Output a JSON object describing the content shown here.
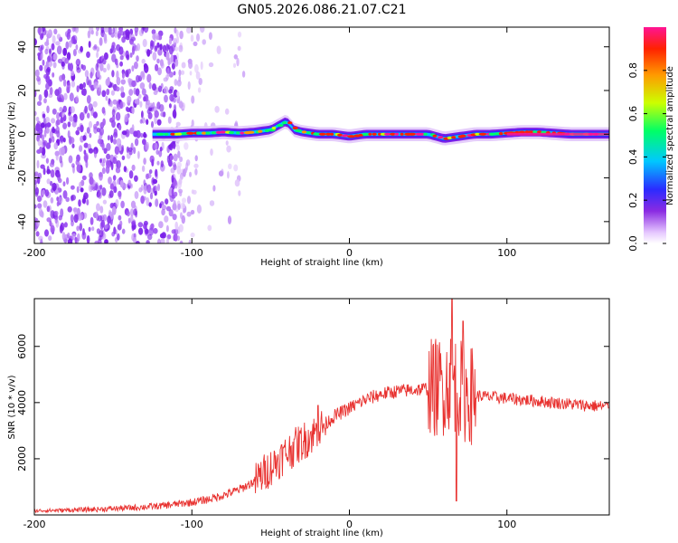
{
  "chart_data": [
    {
      "type": "heatmap",
      "title": "GN05.2026.086.21.07.C21",
      "xlabel": "Height of straight line (km)",
      "ylabel": "Frequency (Hz)",
      "xlim": [
        -200,
        165
      ],
      "ylim": [
        -50,
        49
      ],
      "xticks": [
        -200,
        -100,
        0,
        100
      ],
      "yticks": [
        -40,
        -20,
        0,
        20,
        40
      ],
      "grid": false,
      "colorbar": {
        "label": "Normalized spectral amplitude",
        "range": [
          0,
          1
        ],
        "ticks": [
          "0.0",
          "0.2",
          "0.4",
          "0.6",
          "0.8"
        ]
      },
      "noise_region_x": [
        -200,
        -65
      ],
      "ridge": {
        "x": [
          -125,
          -110,
          -100,
          -90,
          -80,
          -70,
          -60,
          -50,
          -45,
          -40,
          -35,
          -30,
          -20,
          -10,
          0,
          10,
          20,
          30,
          40,
          50,
          55,
          60,
          70,
          80,
          90,
          100,
          110,
          120,
          130,
          140,
          150,
          165
        ],
        "frequency": [
          0,
          0,
          0.5,
          0.5,
          1,
          0.5,
          1,
          2,
          4,
          6,
          2,
          1,
          0,
          0,
          -1,
          0,
          0,
          0,
          0,
          0,
          -1,
          -2,
          -1,
          0,
          0,
          0.5,
          1,
          1,
          0.5,
          0,
          0,
          0
        ]
      }
    },
    {
      "type": "line",
      "xlabel": "Height of straight line (km)",
      "ylabel": "SNR (10 * v/v)",
      "xlim": [
        -200,
        165
      ],
      "ylim": [
        0,
        7700
      ],
      "xticks": [
        -200,
        -100,
        0,
        100
      ],
      "yticks": [
        2000,
        4000,
        6000
      ],
      "grid": false,
      "color": "#e8312f",
      "series": [
        {
          "x": [
            -200,
            -180,
            -160,
            -140,
            -120,
            -100,
            -90,
            -80,
            -70,
            -60,
            -55,
            -50,
            -45,
            -40,
            -35,
            -30,
            -25,
            -20,
            -15,
            -10,
            -5,
            0,
            10,
            20,
            30,
            40,
            50,
            55,
            60,
            62,
            64,
            66,
            68,
            70,
            72,
            75,
            80,
            90,
            100,
            110,
            120,
            130,
            140,
            150,
            165
          ],
          "y": [
            150,
            170,
            200,
            250,
            320,
            450,
            550,
            700,
            900,
            1200,
            1450,
            1700,
            1950,
            2200,
            2400,
            2600,
            2800,
            3000,
            3250,
            3500,
            3650,
            3800,
            4100,
            4300,
            4400,
            4450,
            4500,
            4550,
            4600,
            4700,
            4800,
            4750,
            4650,
            4500,
            4400,
            4300,
            4250,
            4200,
            4150,
            4100,
            4050,
            4000,
            3950,
            3900,
            3850
          ]
        }
      ],
      "spikes": [
        {
          "x": -35,
          "amplitude": 2700
        },
        {
          "x": -20,
          "amplitude": 3900
        },
        {
          "x": 65,
          "amplitude": 7700
        },
        {
          "x": 68,
          "amplitude": 500
        },
        {
          "x": 72,
          "amplitude": 6900
        }
      ]
    }
  ]
}
